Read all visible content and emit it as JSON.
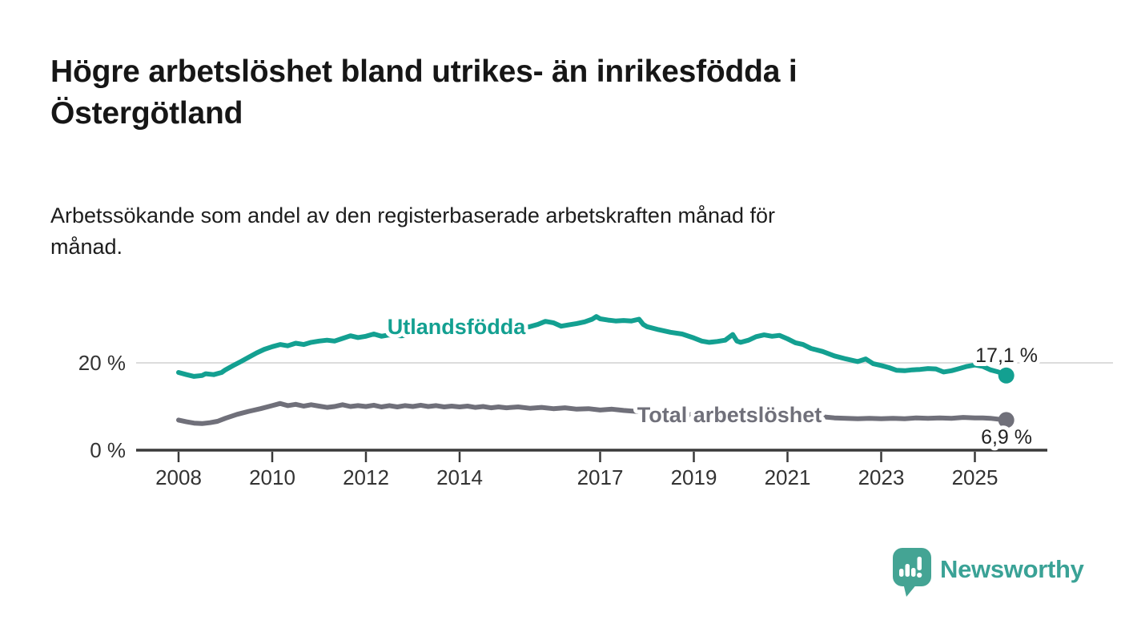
{
  "title": "Högre arbetslöshet bland utrikes- än inrikesfödda i Östergötland",
  "subtitle": "Arbetssökande som andel av den registerbaserade arbetskraften månad för månad.",
  "colors": {
    "background": "#ffffff",
    "title_text": "#161616",
    "body_text": "#1d1d1d",
    "axis": "#3a3a3a",
    "axis_label": "#333333",
    "gridline": "#dcdcdc",
    "series_foreign_born": "#13a091",
    "series_total": "#70707a",
    "end_label_text": "#222222",
    "brand_teal": "#44a494"
  },
  "chart_data": {
    "type": "line",
    "title": "Högre arbetslöshet bland utrikes- än inrikesfödda i Östergötland",
    "subtitle": "Arbetssökande som andel av den registerbaserade arbetskraften månad för månad.",
    "xlabel": "",
    "ylabel": "",
    "x_range": [
      2008,
      2025.67
    ],
    "ylim": [
      0,
      34
    ],
    "grid": "horizontal-at-20-only",
    "legend_position": "inline-labels-on-lines",
    "x_ticks": [
      2008,
      2010,
      2012,
      2014,
      2017,
      2019,
      2021,
      2023,
      2025
    ],
    "y_ticks": [
      {
        "value": 0,
        "label": "0 %"
      },
      {
        "value": 20,
        "label": "20 %"
      }
    ],
    "series": [
      {
        "name": "Utlandsfödda",
        "color": "#13a091",
        "end_value": 17.1,
        "end_label": "17,1 %",
        "points": [
          [
            2008.0,
            17.8
          ],
          [
            2008.17,
            17.3
          ],
          [
            2008.33,
            16.9
          ],
          [
            2008.5,
            17.1
          ],
          [
            2008.58,
            17.5
          ],
          [
            2008.75,
            17.3
          ],
          [
            2008.92,
            17.8
          ],
          [
            2009.0,
            18.4
          ],
          [
            2009.17,
            19.4
          ],
          [
            2009.33,
            20.3
          ],
          [
            2009.5,
            21.3
          ],
          [
            2009.67,
            22.3
          ],
          [
            2009.83,
            23.1
          ],
          [
            2010.0,
            23.7
          ],
          [
            2010.17,
            24.2
          ],
          [
            2010.33,
            23.9
          ],
          [
            2010.5,
            24.5
          ],
          [
            2010.67,
            24.2
          ],
          [
            2010.83,
            24.7
          ],
          [
            2011.0,
            25.0
          ],
          [
            2011.17,
            25.2
          ],
          [
            2011.33,
            25.0
          ],
          [
            2011.5,
            25.6
          ],
          [
            2011.67,
            26.2
          ],
          [
            2011.83,
            25.8
          ],
          [
            2012.0,
            26.1
          ],
          [
            2012.17,
            26.6
          ],
          [
            2012.33,
            26.1
          ],
          [
            2012.5,
            26.4
          ],
          [
            2012.75,
            26.2
          ],
          [
            2013.0,
            26.4
          ],
          [
            2013.25,
            26.6
          ],
          [
            2013.5,
            26.4
          ],
          [
            2013.75,
            26.6
          ],
          [
            2014.0,
            26.8
          ],
          [
            2014.25,
            27.0
          ],
          [
            2014.5,
            27.0
          ],
          [
            2014.75,
            27.2
          ],
          [
            2015.0,
            27.5
          ],
          [
            2015.25,
            27.8
          ],
          [
            2015.5,
            28.3
          ],
          [
            2015.67,
            28.8
          ],
          [
            2015.83,
            29.5
          ],
          [
            2016.0,
            29.2
          ],
          [
            2016.17,
            28.4
          ],
          [
            2016.33,
            28.7
          ],
          [
            2016.5,
            29.0
          ],
          [
            2016.67,
            29.4
          ],
          [
            2016.83,
            30.0
          ],
          [
            2016.92,
            30.6
          ],
          [
            2017.0,
            30.1
          ],
          [
            2017.17,
            29.8
          ],
          [
            2017.33,
            29.6
          ],
          [
            2017.5,
            29.7
          ],
          [
            2017.67,
            29.6
          ],
          [
            2017.83,
            30.0
          ],
          [
            2017.92,
            28.8
          ],
          [
            2018.0,
            28.3
          ],
          [
            2018.25,
            27.6
          ],
          [
            2018.5,
            27.0
          ],
          [
            2018.75,
            26.6
          ],
          [
            2019.0,
            25.7
          ],
          [
            2019.17,
            25.0
          ],
          [
            2019.33,
            24.7
          ],
          [
            2019.5,
            24.9
          ],
          [
            2019.67,
            25.2
          ],
          [
            2019.83,
            26.5
          ],
          [
            2019.92,
            25.0
          ],
          [
            2020.0,
            24.7
          ],
          [
            2020.17,
            25.2
          ],
          [
            2020.33,
            26.0
          ],
          [
            2020.5,
            26.4
          ],
          [
            2020.67,
            26.1
          ],
          [
            2020.83,
            26.3
          ],
          [
            2021.0,
            25.5
          ],
          [
            2021.17,
            24.6
          ],
          [
            2021.33,
            24.2
          ],
          [
            2021.5,
            23.3
          ],
          [
            2021.75,
            22.6
          ],
          [
            2022.0,
            21.6
          ],
          [
            2022.25,
            20.9
          ],
          [
            2022.5,
            20.3
          ],
          [
            2022.67,
            20.9
          ],
          [
            2022.83,
            19.8
          ],
          [
            2023.0,
            19.4
          ],
          [
            2023.17,
            18.9
          ],
          [
            2023.33,
            18.3
          ],
          [
            2023.5,
            18.2
          ],
          [
            2023.67,
            18.4
          ],
          [
            2023.83,
            18.5
          ],
          [
            2024.0,
            18.7
          ],
          [
            2024.17,
            18.6
          ],
          [
            2024.33,
            17.9
          ],
          [
            2024.5,
            18.2
          ],
          [
            2024.67,
            18.7
          ],
          [
            2024.83,
            19.2
          ],
          [
            2025.0,
            19.5
          ],
          [
            2025.17,
            19.2
          ],
          [
            2025.33,
            18.4
          ],
          [
            2025.5,
            17.9
          ],
          [
            2025.67,
            17.1
          ]
        ]
      },
      {
        "name": "Total arbetslöshet",
        "color": "#70707a",
        "end_value": 6.9,
        "end_label": "6,9 %",
        "points": [
          [
            2008.0,
            6.9
          ],
          [
            2008.17,
            6.5
          ],
          [
            2008.33,
            6.2
          ],
          [
            2008.5,
            6.1
          ],
          [
            2008.67,
            6.3
          ],
          [
            2008.83,
            6.6
          ],
          [
            2009.0,
            7.3
          ],
          [
            2009.25,
            8.2
          ],
          [
            2009.5,
            8.9
          ],
          [
            2009.75,
            9.5
          ],
          [
            2010.0,
            10.2
          ],
          [
            2010.17,
            10.7
          ],
          [
            2010.33,
            10.2
          ],
          [
            2010.5,
            10.5
          ],
          [
            2010.67,
            10.1
          ],
          [
            2010.83,
            10.4
          ],
          [
            2011.0,
            10.1
          ],
          [
            2011.17,
            9.8
          ],
          [
            2011.33,
            10.0
          ],
          [
            2011.5,
            10.4
          ],
          [
            2011.67,
            10.0
          ],
          [
            2011.83,
            10.2
          ],
          [
            2012.0,
            10.0
          ],
          [
            2012.17,
            10.3
          ],
          [
            2012.33,
            9.9
          ],
          [
            2012.5,
            10.2
          ],
          [
            2012.67,
            9.9
          ],
          [
            2012.83,
            10.2
          ],
          [
            2013.0,
            10.0
          ],
          [
            2013.17,
            10.3
          ],
          [
            2013.33,
            10.0
          ],
          [
            2013.5,
            10.2
          ],
          [
            2013.67,
            9.9
          ],
          [
            2013.83,
            10.1
          ],
          [
            2014.0,
            9.9
          ],
          [
            2014.17,
            10.1
          ],
          [
            2014.33,
            9.8
          ],
          [
            2014.5,
            10.0
          ],
          [
            2014.67,
            9.7
          ],
          [
            2014.83,
            9.9
          ],
          [
            2015.0,
            9.7
          ],
          [
            2015.25,
            9.9
          ],
          [
            2015.5,
            9.6
          ],
          [
            2015.75,
            9.8
          ],
          [
            2016.0,
            9.5
          ],
          [
            2016.25,
            9.7
          ],
          [
            2016.5,
            9.4
          ],
          [
            2016.75,
            9.5
          ],
          [
            2017.0,
            9.2
          ],
          [
            2017.25,
            9.4
          ],
          [
            2017.5,
            9.1
          ],
          [
            2017.75,
            8.9
          ],
          [
            2018.0,
            8.7
          ],
          [
            2018.5,
            8.4
          ],
          [
            2019.0,
            8.1
          ],
          [
            2019.5,
            8.0
          ],
          [
            2020.0,
            8.2
          ],
          [
            2020.33,
            8.9
          ],
          [
            2020.67,
            8.7
          ],
          [
            2021.0,
            8.4
          ],
          [
            2021.5,
            7.9
          ],
          [
            2022.0,
            7.4
          ],
          [
            2022.25,
            7.3
          ],
          [
            2022.5,
            7.2
          ],
          [
            2022.75,
            7.3
          ],
          [
            2023.0,
            7.2
          ],
          [
            2023.25,
            7.3
          ],
          [
            2023.5,
            7.2
          ],
          [
            2023.75,
            7.4
          ],
          [
            2024.0,
            7.3
          ],
          [
            2024.25,
            7.4
          ],
          [
            2024.5,
            7.3
          ],
          [
            2024.75,
            7.5
          ],
          [
            2025.0,
            7.4
          ],
          [
            2025.17,
            7.4
          ],
          [
            2025.33,
            7.3
          ],
          [
            2025.5,
            7.1
          ],
          [
            2025.67,
            6.9
          ]
        ]
      }
    ]
  },
  "footer": {
    "brand": "Newsworthy"
  }
}
